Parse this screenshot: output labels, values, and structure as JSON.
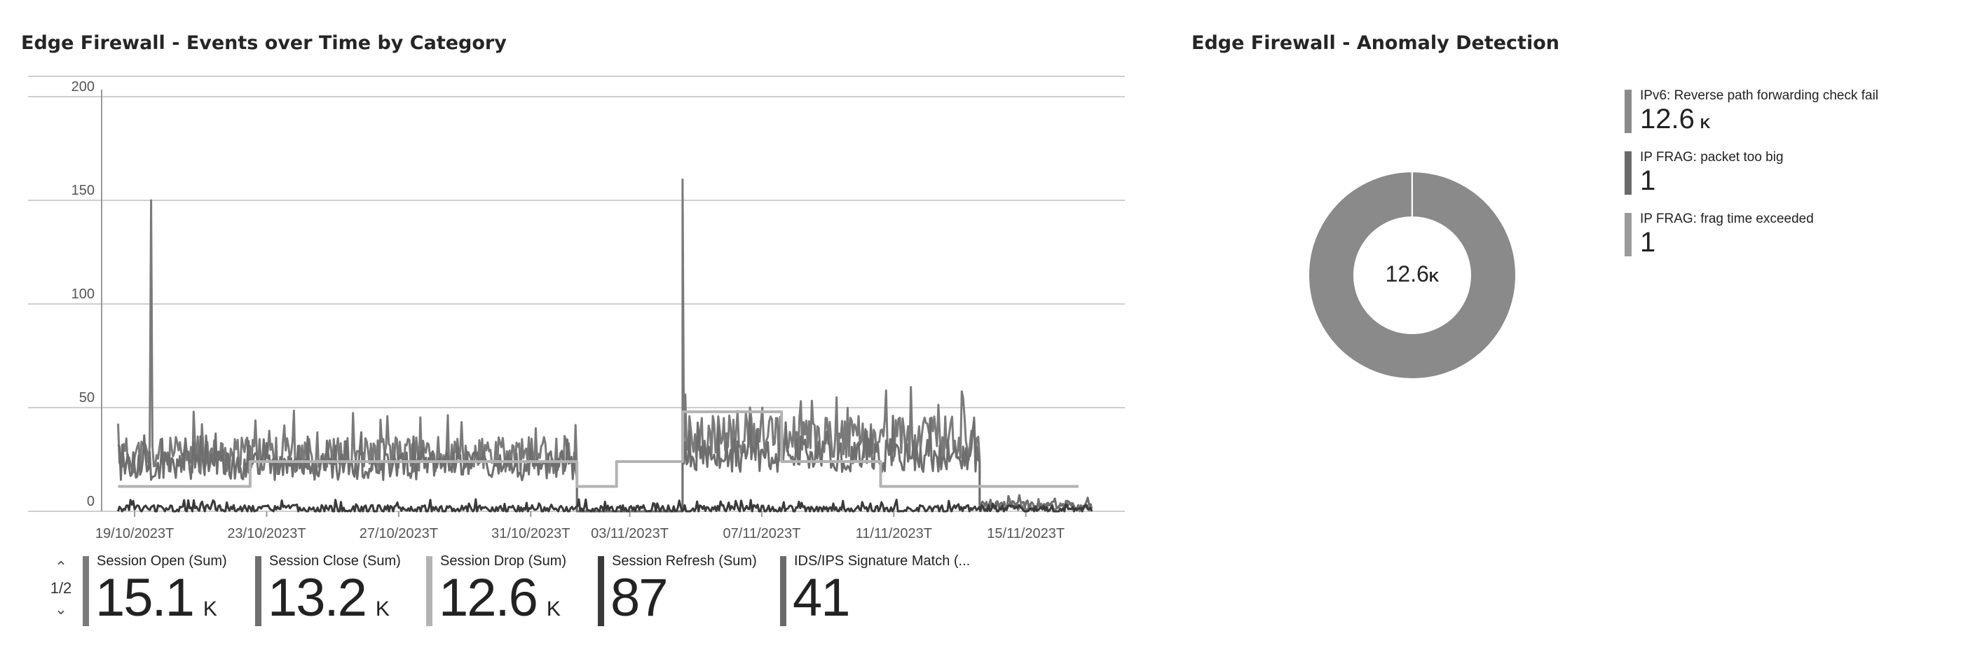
{
  "left_panel": {
    "title": "Edge Firewall - Events over Time by Category",
    "pager": {
      "up": "^",
      "text": "1/2",
      "down": "v"
    },
    "metrics": [
      {
        "label": "Session Open (Sum)",
        "value": "15.1",
        "unit": "K",
        "color": "#7a7a7a"
      },
      {
        "label": "Session Close (Sum)",
        "value": "13.2",
        "unit": "K",
        "color": "#6e6e6e"
      },
      {
        "label": "Session Drop (Sum)",
        "value": "12.6",
        "unit": "K",
        "color": "#b3b3b3"
      },
      {
        "label": "Session Refresh (Sum)",
        "value": "87",
        "unit": "",
        "color": "#3a3a3a"
      },
      {
        "label": "IDS/IPS Signature Match (...",
        "value": "41",
        "unit": "",
        "color": "#6a6a6a"
      }
    ]
  },
  "right_panel": {
    "title": "Edge Firewall - Anomaly Detection",
    "donut_center": {
      "value": "12.6",
      "unit": "K"
    },
    "legend": [
      {
        "label": "IPv6: Reverse path forwarding check fail",
        "value": "12.6",
        "unit": "K",
        "color": "#8a8a8a"
      },
      {
        "label": "IP FRAG: packet too big",
        "value": "1",
        "unit": "",
        "color": "#6a6a6a"
      },
      {
        "label": "IP FRAG: frag time exceeded",
        "value": "1",
        "unit": "",
        "color": "#9a9a9a"
      }
    ]
  },
  "chart_data": [
    {
      "type": "line",
      "x_ticks": [
        "19/10/2023T",
        "23/10/2023T",
        "27/10/2023T",
        "31/10/2023T",
        "03/11/2023T",
        "07/11/2023T",
        "11/11/2023T",
        "15/11/2023T"
      ],
      "y_ticks": [
        "0",
        "50",
        "100",
        "150",
        "200"
      ],
      "ylim": [
        0,
        200
      ],
      "x_range": [
        "2023-10-18",
        "2023-11-18"
      ],
      "grid": true,
      "series": [
        {
          "name": "Session Open (Sum)",
          "color": "#7a7a7a",
          "segments": [
            {
              "x0": 0.5,
              "x1": 14.4,
              "base": 27,
              "amp": 9,
              "spike": [
                1.5,
                150
              ]
            },
            {
              "x0": 14.4,
              "x1": 17.6,
              "base": 0,
              "amp": 0
            },
            {
              "x0": 17.6,
              "x1": 26.6,
              "base": 35,
              "amp": 11,
              "spike": [
                17.6,
                160
              ]
            },
            {
              "x0": 26.6,
              "x1": 30.0,
              "base": 2,
              "amp": 2
            }
          ]
        },
        {
          "name": "Session Close (Sum)",
          "color": "#6e6e6e",
          "segments": [
            {
              "x0": 0.5,
              "x1": 14.4,
              "base": 22,
              "amp": 7
            },
            {
              "x0": 14.4,
              "x1": 17.6,
              "base": 0,
              "amp": 0
            },
            {
              "x0": 17.6,
              "x1": 26.6,
              "base": 27,
              "amp": 8
            },
            {
              "x0": 26.6,
              "x1": 30.0,
              "base": 3,
              "amp": 2
            }
          ]
        },
        {
          "name": "Session Drop (Sum)",
          "color": "#b3b3b3",
          "steps": [
            {
              "x0": 0.5,
              "x1": 4.5,
              "value": 12
            },
            {
              "x0": 4.5,
              "x1": 14.4,
              "value": 24
            },
            {
              "x0": 14.4,
              "x1": 15.6,
              "value": 12
            },
            {
              "x0": 15.6,
              "x1": 17.6,
              "value": 24
            },
            {
              "x0": 17.6,
              "x1": 20.6,
              "value": 48
            },
            {
              "x0": 20.6,
              "x1": 23.6,
              "value": 24
            },
            {
              "x0": 23.6,
              "x1": 26.6,
              "value": 12
            },
            {
              "x0": 26.6,
              "x1": 29.6,
              "value": 12
            }
          ]
        },
        {
          "name": "Session Refresh (Sum)",
          "color": "#3a3a3a",
          "segments": [
            {
              "x0": 0.5,
              "x1": 30.0,
              "base": 1,
              "amp": 2
            }
          ]
        }
      ]
    },
    {
      "type": "pie",
      "donut": true,
      "slices": [
        {
          "label": "IPv6: Reverse path forwarding check fail",
          "value": 12600,
          "color": "#8a8a8a"
        },
        {
          "label": "IP FRAG: packet too big",
          "value": 1,
          "color": "#6a6a6a"
        },
        {
          "label": "IP FRAG: frag time exceeded",
          "value": 1,
          "color": "#9a9a9a"
        }
      ]
    }
  ]
}
